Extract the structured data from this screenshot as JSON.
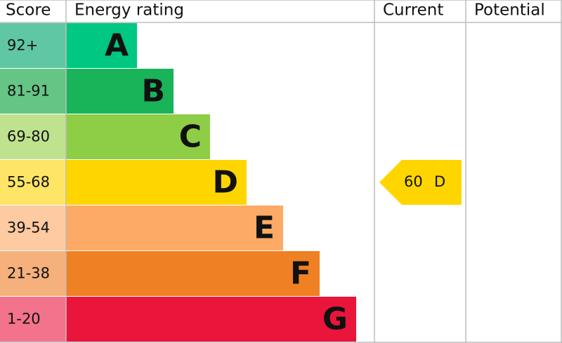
{
  "header": {
    "score": "Score",
    "rating": "Energy rating",
    "current": "Current",
    "potential": "Potential"
  },
  "bands": [
    {
      "score": "92+",
      "letter": "A",
      "color": "#00c781",
      "score_color": "#5fc7a3"
    },
    {
      "score": "81-91",
      "letter": "B",
      "color": "#19b459",
      "score_color": "#64c585"
    },
    {
      "score": "69-80",
      "letter": "C",
      "color": "#8dce46",
      "score_color": "#bfe28f"
    },
    {
      "score": "55-68",
      "letter": "D",
      "color": "#ffd500",
      "score_color": "#ffe566"
    },
    {
      "score": "39-54",
      "letter": "E",
      "color": "#fcaa65",
      "score_color": "#fdcaa1"
    },
    {
      "score": "21-38",
      "letter": "F",
      "color": "#ef8023",
      "score_color": "#f5b07b"
    },
    {
      "score": "1-20",
      "letter": "G",
      "color": "#e9153b",
      "score_color": "#f2738b"
    }
  ],
  "current": {
    "value": 60,
    "letter": "D",
    "band": 3
  }
}
